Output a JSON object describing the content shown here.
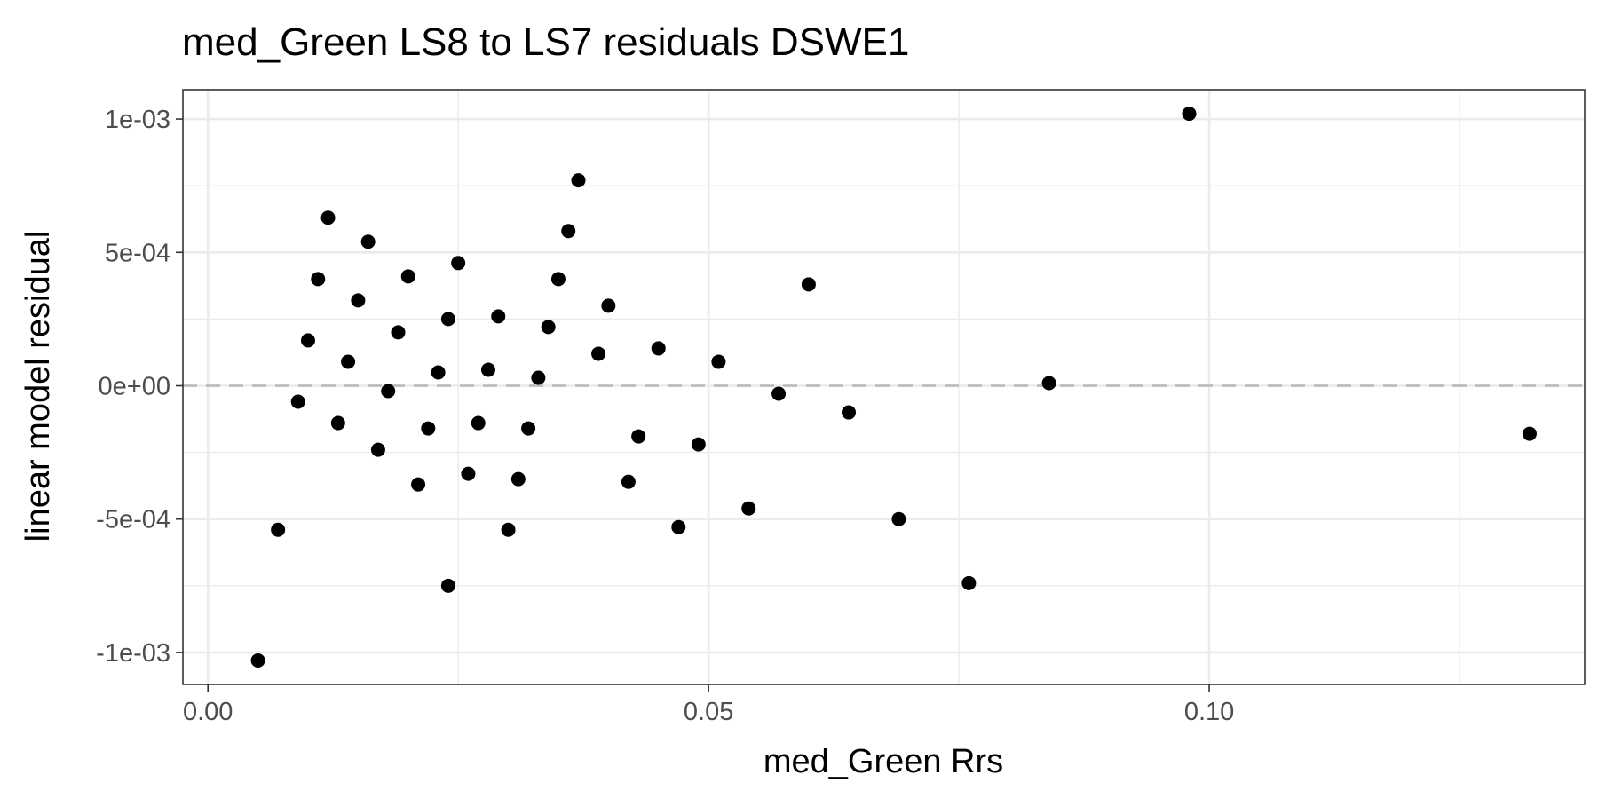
{
  "chart_data": {
    "type": "scatter",
    "title": "med_Green LS8 to LS7 residuals DSWE1",
    "xlabel": "med_Green  Rrs",
    "ylabel": "linear model residual",
    "xlim": [
      -0.0025,
      0.1375
    ],
    "ylim": [
      -0.00112,
      0.00111
    ],
    "x_ticks": [
      0.0,
      0.05,
      0.1
    ],
    "x_tick_labels": [
      "0.00",
      "0.05",
      "0.10"
    ],
    "y_ticks": [
      0.001,
      0.0005,
      0.0,
      -0.0005,
      -0.001
    ],
    "y_tick_labels": [
      "1e-03",
      "5e-04",
      "0e+00",
      "-5e-04",
      "-1e-03"
    ],
    "reference_line": {
      "y": 0.0,
      "style": "dashed"
    },
    "grid": true,
    "theme": {
      "point_color": "#000000",
      "grid_color": "#ebebeb",
      "ref_line_color": "#bdbdbd",
      "panel_border": "#333333"
    },
    "points": [
      {
        "x": 0.005,
        "y": -0.00103
      },
      {
        "x": 0.007,
        "y": -0.00054
      },
      {
        "x": 0.009,
        "y": -6e-05
      },
      {
        "x": 0.01,
        "y": 0.00017
      },
      {
        "x": 0.011,
        "y": 0.0004
      },
      {
        "x": 0.012,
        "y": 0.00063
      },
      {
        "x": 0.013,
        "y": -0.00014
      },
      {
        "x": 0.014,
        "y": 9e-05
      },
      {
        "x": 0.015,
        "y": 0.00032
      },
      {
        "x": 0.016,
        "y": 0.00054
      },
      {
        "x": 0.017,
        "y": -0.00024
      },
      {
        "x": 0.018,
        "y": -2e-05
      },
      {
        "x": 0.019,
        "y": 0.0002
      },
      {
        "x": 0.02,
        "y": 0.00041
      },
      {
        "x": 0.021,
        "y": -0.00037
      },
      {
        "x": 0.022,
        "y": -0.00016
      },
      {
        "x": 0.023,
        "y": 5e-05
      },
      {
        "x": 0.024,
        "y": 0.00025
      },
      {
        "x": 0.024,
        "y": -0.00075
      },
      {
        "x": 0.025,
        "y": 0.00046
      },
      {
        "x": 0.026,
        "y": -0.00033
      },
      {
        "x": 0.027,
        "y": -0.00014
      },
      {
        "x": 0.028,
        "y": 6e-05
      },
      {
        "x": 0.029,
        "y": 0.00026
      },
      {
        "x": 0.03,
        "y": -0.00054
      },
      {
        "x": 0.031,
        "y": -0.00035
      },
      {
        "x": 0.032,
        "y": -0.00016
      },
      {
        "x": 0.033,
        "y": 3e-05
      },
      {
        "x": 0.034,
        "y": 0.00022
      },
      {
        "x": 0.035,
        "y": 0.0004
      },
      {
        "x": 0.036,
        "y": 0.00058
      },
      {
        "x": 0.037,
        "y": 0.00077
      },
      {
        "x": 0.039,
        "y": 0.00012
      },
      {
        "x": 0.04,
        "y": 0.0003
      },
      {
        "x": 0.042,
        "y": -0.00036
      },
      {
        "x": 0.043,
        "y": -0.00019
      },
      {
        "x": 0.045,
        "y": 0.00014
      },
      {
        "x": 0.047,
        "y": -0.00053
      },
      {
        "x": 0.049,
        "y": -0.00022
      },
      {
        "x": 0.051,
        "y": 9e-05
      },
      {
        "x": 0.054,
        "y": -0.00046
      },
      {
        "x": 0.057,
        "y": -3e-05
      },
      {
        "x": 0.06,
        "y": 0.00038
      },
      {
        "x": 0.064,
        "y": -0.0001
      },
      {
        "x": 0.069,
        "y": -0.0005
      },
      {
        "x": 0.076,
        "y": -0.00074
      },
      {
        "x": 0.084,
        "y": 1e-05
      },
      {
        "x": 0.098,
        "y": 0.00102
      },
      {
        "x": 0.132,
        "y": -0.00018
      }
    ]
  }
}
